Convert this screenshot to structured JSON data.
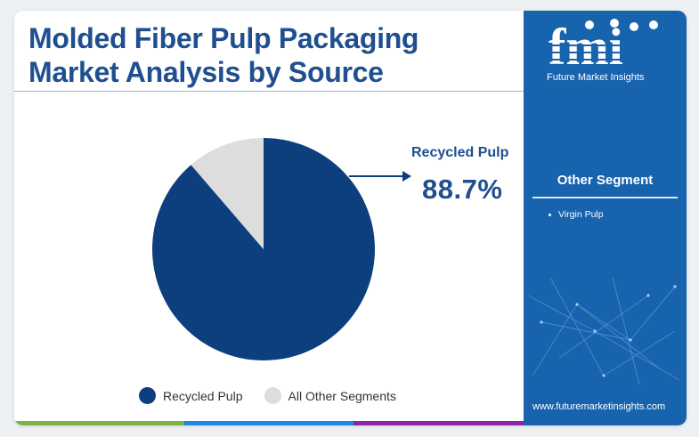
{
  "title": "Molded Fiber Pulp Packaging Market Analysis by Source",
  "callout": {
    "label": "Recycled Pulp",
    "value": "88.7%"
  },
  "chart_data": {
    "type": "pie",
    "slices": [
      {
        "label": "Recycled Pulp",
        "value": 88.7,
        "color": "#0d3f7e"
      },
      {
        "label": "All Other Segments",
        "value": 11.3,
        "color": "#dddddd"
      }
    ],
    "legend_position": "bottom"
  },
  "legend": [
    {
      "label": "Recycled Pulp",
      "color": "#0d3f7e"
    },
    {
      "label": "All Other Segments",
      "color": "#dddddd"
    }
  ],
  "sidebar": {
    "logo_text": "fmi",
    "logo_tagline": "Future Market Insights",
    "segment_title": "Other Segment",
    "segment_items": [
      "Virgin Pulp"
    ],
    "website": "www.futuremarketinsights.com",
    "background_color": "#1763ad"
  },
  "bottom_bar_colors": [
    "#7cb342",
    "#1e88e5",
    "#8e24aa"
  ]
}
